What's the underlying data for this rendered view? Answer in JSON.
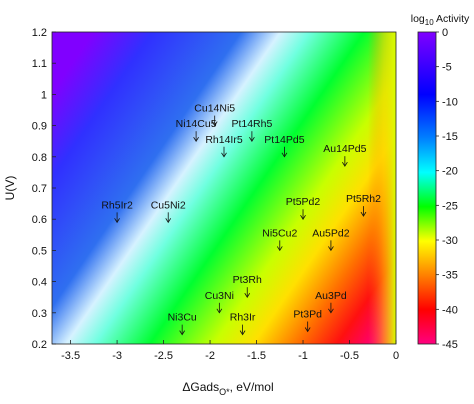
{
  "chart_data": {
    "type": "heatmap",
    "xlabel": "ΔGads",
    "xlabel_sub": "O*",
    "xlabel_unit": ", eV/mol",
    "ylabel": "U(V)",
    "xlim": [
      -3.7,
      0
    ],
    "ylim": [
      0.2,
      1.2
    ],
    "x_ticks": [
      -3.5,
      -3,
      -2.5,
      -2,
      -1.5,
      -1,
      -0.5,
      0
    ],
    "x_tick_labels": [
      "-3.5",
      "-3",
      "-2.5",
      "-2",
      "-1.5",
      "-1",
      "-0.5",
      "0"
    ],
    "y_ticks": [
      0.2,
      0.3,
      0.4,
      0.5,
      0.6,
      0.7,
      0.8,
      0.9,
      1.0,
      1.1,
      1.2
    ],
    "y_tick_labels": [
      "0.2",
      "0.3",
      "0.4",
      "0.5",
      "0.6",
      "0.7",
      "0.8",
      "0.9",
      "1",
      "1.1",
      "1.2"
    ],
    "colorbar": {
      "title_prefix": "log",
      "title_sub": "10",
      "title_suffix": " Activity",
      "range": [
        -45,
        0
      ],
      "ticks": [
        0,
        -5,
        -10,
        -15,
        -20,
        -25,
        -30,
        -35,
        -40,
        -45
      ],
      "tick_labels": [
        "0",
        "-5",
        "-10",
        "-15",
        "-20",
        "-25",
        "-30",
        "-35",
        "-40",
        "-45"
      ],
      "colors": [
        "#ff0080",
        "#ff0000",
        "#ff8000",
        "#ffff00",
        "#00ff00",
        "#00ffff",
        "#0080ff",
        "#0000ff",
        "#8000ff"
      ]
    },
    "annotations": [
      {
        "label": "Cu14Ni5",
        "x": -1.95,
        "y": 0.9
      },
      {
        "label": "Ni14Cu5",
        "x": -2.15,
        "y": 0.85
      },
      {
        "label": "Pt14Rh5",
        "x": -1.55,
        "y": 0.85
      },
      {
        "label": "Rh14Ir5",
        "x": -1.85,
        "y": 0.8
      },
      {
        "label": "Pt14Pd5",
        "x": -1.2,
        "y": 0.8
      },
      {
        "label": "Au14Pd5",
        "x": -0.55,
        "y": 0.77
      },
      {
        "label": "Rh5Ir2",
        "x": -3.0,
        "y": 0.59
      },
      {
        "label": "Cu5Ni2",
        "x": -2.45,
        "y": 0.59
      },
      {
        "label": "Pt5Pd2",
        "x": -1.0,
        "y": 0.6
      },
      {
        "label": "Pt5Rh2",
        "x": -0.35,
        "y": 0.61
      },
      {
        "label": "Ni5Cu2",
        "x": -1.25,
        "y": 0.5
      },
      {
        "label": "Au5Pd2",
        "x": -0.7,
        "y": 0.5
      },
      {
        "label": "Pt3Rh",
        "x": -1.6,
        "y": 0.35
      },
      {
        "label": "Cu3Ni",
        "x": -1.9,
        "y": 0.3
      },
      {
        "label": "Ni3Cu",
        "x": -2.3,
        "y": 0.23
      },
      {
        "label": "Rh3Ir",
        "x": -1.65,
        "y": 0.23
      },
      {
        "label": "Au3Pd",
        "x": -0.7,
        "y": 0.3
      },
      {
        "label": "Pt3Pd",
        "x": -0.95,
        "y": 0.24
      }
    ]
  }
}
